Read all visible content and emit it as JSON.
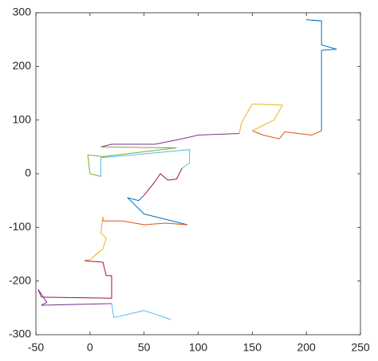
{
  "chart_data": {
    "type": "line",
    "xlim": [
      -50,
      250
    ],
    "xticks": [
      -50,
      0,
      50,
      100,
      150,
      200,
      250
    ],
    "ylim": [
      -300,
      300
    ],
    "yticks": [
      -300,
      -200,
      -100,
      0,
      100,
      200,
      300
    ],
    "grid": false,
    "series": [
      {
        "color": "#0072BD",
        "x": [
          212,
          200,
          214,
          214,
          228,
          214,
          214
        ],
        "y": [
          285,
          287,
          285,
          240,
          232,
          230,
          80
        ]
      },
      {
        "color": "#D95319",
        "x": [
          214,
          205,
          180,
          175,
          160,
          150
        ],
        "y": [
          80,
          72,
          78,
          65,
          72,
          80
        ]
      },
      {
        "color": "#EDB120",
        "x": [
          150,
          170,
          178,
          150,
          140,
          138
        ],
        "y": [
          80,
          100,
          128,
          130,
          95,
          75
        ]
      },
      {
        "color": "#7E2F8E",
        "x": [
          138,
          100,
          85,
          60,
          20,
          10
        ],
        "y": [
          75,
          72,
          65,
          55,
          55,
          50
        ]
      },
      {
        "color": "#77AC30",
        "x": [
          10,
          80,
          12,
          -2,
          0,
          10
        ],
        "y": [
          50,
          48,
          32,
          35,
          0,
          -5
        ]
      },
      {
        "color": "#4DBEEE",
        "x": [
          10,
          10,
          40,
          92,
          92,
          85
        ],
        "y": [
          -5,
          30,
          35,
          45,
          20,
          10
        ]
      },
      {
        "color": "#A2142F",
        "x": [
          85,
          80,
          72,
          65,
          60,
          50
        ],
        "y": [
          10,
          -10,
          -12,
          0,
          -15,
          -40
        ]
      },
      {
        "color": "#0072BD",
        "x": [
          50,
          45,
          35,
          50,
          60,
          90
        ],
        "y": [
          -40,
          -50,
          -45,
          -75,
          -80,
          -95
        ]
      },
      {
        "color": "#D95319",
        "x": [
          90,
          70,
          50,
          30,
          12,
          12
        ],
        "y": [
          -95,
          -92,
          -95,
          -88,
          -88,
          -80
        ]
      },
      {
        "color": "#EDB120",
        "x": [
          12,
          10,
          15,
          12,
          0,
          -5
        ],
        "y": [
          -80,
          -110,
          -120,
          -140,
          -160,
          -162
        ]
      },
      {
        "color": "#A2142F",
        "x": [
          -5,
          12,
          15,
          20,
          20,
          -45
        ],
        "y": [
          -162,
          -165,
          -190,
          -190,
          -232,
          -230
        ]
      },
      {
        "color": "#7E2F8E",
        "x": [
          -45,
          -48,
          -40,
          -45,
          20
        ],
        "y": [
          -230,
          -215,
          -240,
          -245,
          -242
        ]
      },
      {
        "color": "#4DBEEE",
        "x": [
          20,
          22,
          35,
          50,
          65,
          75
        ],
        "y": [
          -242,
          -268,
          -262,
          -255,
          -265,
          -272
        ]
      }
    ]
  }
}
